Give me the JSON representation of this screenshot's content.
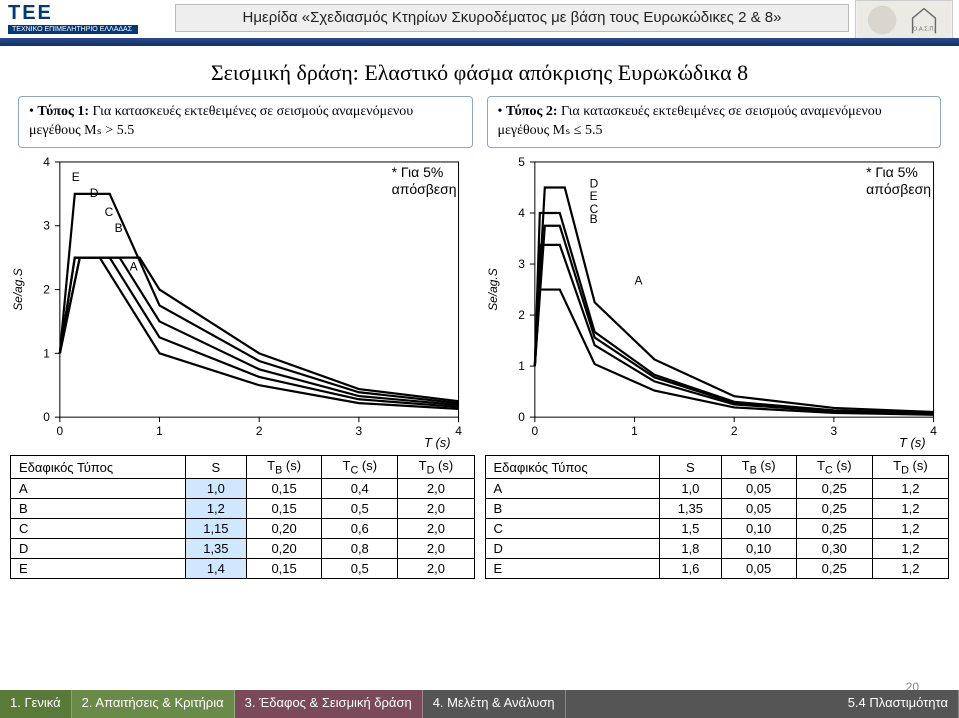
{
  "header": {
    "tee_initials": "TEE",
    "tee_sub": "ΤΕΧΝΙΚΟ ΕΠΙΜΕΛΗΤΗΡΙΟ ΕΛΛΑΔΑΣ",
    "banner": "Ημερίδα «Σχεδιασμός Κτηρίων Σκυροδέματος με βάση τους Ευρωκώδικες 2 & 8»",
    "corner_label": "Ο.Α.Σ.Π."
  },
  "title": "Σεισμική δράση: Ελαστικό φάσμα απόκρισης Ευρωκώδικα 8",
  "box1": {
    "lead": "Τύπος 1:",
    "rest": " Για κατασκευές εκτεθειμένες σε σεισμούς αναμενόμενου μεγέθους Mₛ > 5.5"
  },
  "box2": {
    "lead": "Τύπος 2:",
    "rest": " Για κατασκευές εκτεθειμένες σε σεισμούς αναμενόμενου μεγέθους Mₛ ≤ 5.5"
  },
  "damping_note": "* Για 5%\nαπόσβεση",
  "chart_common": {
    "xlabel": "T (s)",
    "ylabel": "Se/ag.S",
    "line_color": "#000000",
    "grid_color": "#ffffff",
    "line_width": 2.2,
    "font_size_axis": 12,
    "font_size_series": 11,
    "series_labels": [
      "A",
      "B",
      "C",
      "D",
      "E"
    ]
  },
  "chart1": {
    "xlim": [
      0,
      4
    ],
    "ylim": [
      0,
      4
    ],
    "xtick_step": 1,
    "ytick_step": 1,
    "series": {
      "A": [
        [
          0,
          1.0
        ],
        [
          0.15,
          2.5
        ],
        [
          0.4,
          2.5
        ],
        [
          1.0,
          1.0
        ],
        [
          2.0,
          0.5
        ],
        [
          3.0,
          0.22
        ],
        [
          4.0,
          0.13
        ]
      ],
      "B": [
        [
          0,
          1.0
        ],
        [
          0.15,
          2.5
        ],
        [
          0.5,
          2.5
        ],
        [
          1.0,
          1.25
        ],
        [
          2.0,
          0.63
        ],
        [
          3.0,
          0.28
        ],
        [
          4.0,
          0.16
        ]
      ],
      "C": [
        [
          0,
          1.0
        ],
        [
          0.2,
          2.5
        ],
        [
          0.6,
          2.5
        ],
        [
          1.0,
          1.5
        ],
        [
          2.0,
          0.75
        ],
        [
          3.0,
          0.33
        ],
        [
          4.0,
          0.19
        ]
      ],
      "D": [
        [
          0,
          1.0
        ],
        [
          0.2,
          2.5
        ],
        [
          0.8,
          2.5
        ],
        [
          1.0,
          2.0
        ],
        [
          2.0,
          1.0
        ],
        [
          3.0,
          0.44
        ],
        [
          4.0,
          0.25
        ]
      ],
      "E": [
        [
          0,
          1.0
        ],
        [
          0.15,
          3.5
        ],
        [
          0.5,
          3.5
        ],
        [
          1.0,
          1.75
        ],
        [
          2.0,
          0.88
        ],
        [
          3.0,
          0.39
        ],
        [
          4.0,
          0.22
        ]
      ]
    },
    "label_pos": {
      "A": [
        0.7,
        2.3
      ],
      "B": [
        0.55,
        2.9
      ],
      "C": [
        0.45,
        3.15
      ],
      "D": [
        0.3,
        3.45
      ],
      "E": [
        0.12,
        3.7
      ]
    }
  },
  "chart2": {
    "xlim": [
      0,
      4
    ],
    "ylim": [
      0,
      5
    ],
    "xtick_step": 1,
    "ytick_step": 1,
    "series": {
      "A": [
        [
          0,
          1.0
        ],
        [
          0.05,
          2.5
        ],
        [
          0.25,
          2.5
        ],
        [
          0.6,
          1.04
        ],
        [
          1.2,
          0.52
        ],
        [
          2.0,
          0.19
        ],
        [
          3.0,
          0.083
        ],
        [
          4.0,
          0.047
        ]
      ],
      "B": [
        [
          0,
          1.0
        ],
        [
          0.05,
          3.375
        ],
        [
          0.25,
          3.375
        ],
        [
          0.6,
          1.41
        ],
        [
          1.2,
          0.7
        ],
        [
          2.0,
          0.25
        ],
        [
          3.0,
          0.113
        ],
        [
          4.0,
          0.063
        ]
      ],
      "C": [
        [
          0,
          1.0
        ],
        [
          0.1,
          3.75
        ],
        [
          0.25,
          3.75
        ],
        [
          0.6,
          1.56
        ],
        [
          1.2,
          0.78
        ],
        [
          2.0,
          0.28
        ],
        [
          3.0,
          0.125
        ],
        [
          4.0,
          0.07
        ]
      ],
      "D": [
        [
          0,
          1.0
        ],
        [
          0.1,
          4.5
        ],
        [
          0.3,
          4.5
        ],
        [
          0.6,
          2.25
        ],
        [
          1.2,
          1.13
        ],
        [
          2.0,
          0.41
        ],
        [
          3.0,
          0.18
        ],
        [
          4.0,
          0.101
        ]
      ],
      "E": [
        [
          0,
          1.0
        ],
        [
          0.05,
          4.0
        ],
        [
          0.25,
          4.0
        ],
        [
          0.6,
          1.67
        ],
        [
          1.2,
          0.83
        ],
        [
          2.0,
          0.3
        ],
        [
          3.0,
          0.133
        ],
        [
          4.0,
          0.075
        ]
      ]
    },
    "label_pos": {
      "A": [
        1.0,
        2.6
      ],
      "B": [
        0.55,
        3.8
      ],
      "C": [
        0.55,
        4.0
      ],
      "D": [
        0.55,
        4.5
      ],
      "E": [
        0.55,
        4.25
      ]
    }
  },
  "table_headers": [
    "Εδαφικός Τύπος",
    "S",
    "T_B (s)",
    "T_C (s)",
    "T_D (s)"
  ],
  "table1": {
    "highlight_col": 1,
    "rows": [
      [
        "A",
        "1,0",
        "0,15",
        "0,4",
        "2,0"
      ],
      [
        "B",
        "1,2",
        "0,15",
        "0,5",
        "2,0"
      ],
      [
        "C",
        "1,15",
        "0,20",
        "0,6",
        "2,0"
      ],
      [
        "D",
        "1,35",
        "0,20",
        "0,8",
        "2,0"
      ],
      [
        "E",
        "1,4",
        "0,15",
        "0,5",
        "2,0"
      ]
    ]
  },
  "table2": {
    "highlight_col": -1,
    "rows": [
      [
        "A",
        "1,0",
        "0,05",
        "0,25",
        "1,2"
      ],
      [
        "B",
        "1,35",
        "0,05",
        "0,25",
        "1,2"
      ],
      [
        "C",
        "1,5",
        "0,10",
        "0,25",
        "1,2"
      ],
      [
        "D",
        "1,8",
        "0,10",
        "0,30",
        "1,2"
      ],
      [
        "E",
        "1,6",
        "0,05",
        "0,25",
        "1,2"
      ]
    ]
  },
  "footer": {
    "items": [
      "1. Γενικά",
      "2. Απαιτήσεις & Κριτήρια",
      "3. Έδαφος & Σεισμική δράση",
      "4. Μελέτη & Ανάλυση",
      "5.4 Πλαστιμότητα"
    ],
    "page": "20"
  },
  "colors": {
    "tee_blue": "#003a7a",
    "ribbon": "#13306a",
    "box_border": "#8ea5c4",
    "hl": "#cfe7ff",
    "f1": "#5a7a3a",
    "f2": "#6a8a4a",
    "f3": "#7a4a5a",
    "f45": "#555555"
  }
}
